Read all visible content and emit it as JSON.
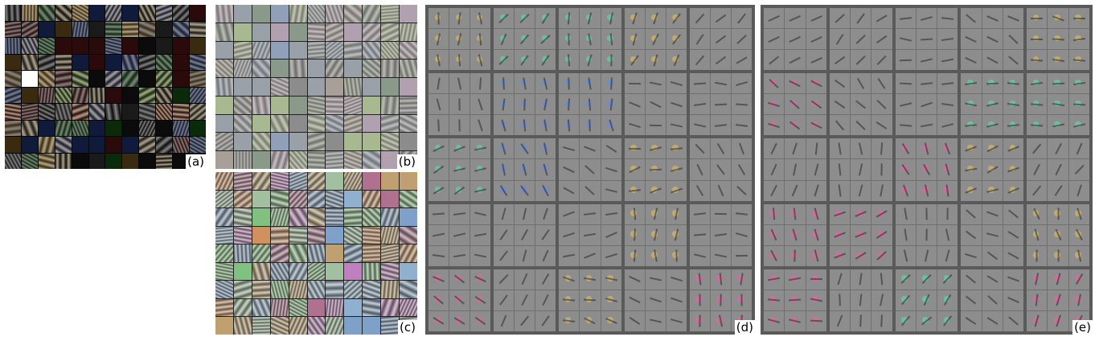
{
  "figure": {
    "panels": [
      {
        "id": "a",
        "label": "(a)",
        "style": "dark",
        "cols": 12,
        "rows": 10
      },
      {
        "id": "b",
        "label": "(b)",
        "style": "pastel",
        "cols": 11,
        "rows": 9
      },
      {
        "id": "c",
        "label": "(c)",
        "style": "colorful",
        "cols": 11,
        "rows": 9
      },
      {
        "id": "d",
        "label": "(d)",
        "style": "gray-blocks",
        "cols": 5,
        "rows": 5
      },
      {
        "id": "e",
        "label": "(e)",
        "style": "gray-blocks",
        "cols": 5,
        "rows": 5
      }
    ]
  },
  "colors": {
    "background": "#ffffff",
    "dark_panel": "#050505",
    "gray_panel": "#5a5a5a",
    "feature_gray": "#8d8d8d"
  }
}
